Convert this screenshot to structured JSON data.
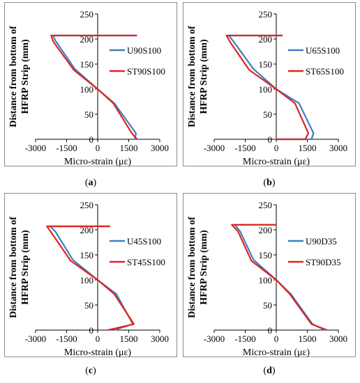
{
  "figure": {
    "captions": [
      "(a)",
      "(b)",
      "(c)",
      "(d)"
    ]
  },
  "colors": {
    "blue": "#3a7fc4",
    "red": "#e0231c",
    "axis": "#000000"
  },
  "chart_data": [
    {
      "type": "line",
      "panel_label": "(a)",
      "ylabel": "Distance from bottom of HFRP Strip (mm)",
      "xlabel": "Micro-strain (με)",
      "xlim": [
        -3000,
        3000
      ],
      "ylim": [
        0,
        250
      ],
      "xticks": [
        -3000,
        -1500,
        0,
        1500,
        3000
      ],
      "yticks": [
        0,
        50,
        100,
        150,
        200,
        250
      ],
      "legend_position": "right",
      "series": [
        {
          "name": "U90S100",
          "color": "#3a7fc4",
          "points": [
            [
              1800,
              0
            ],
            [
              1850,
              12
            ],
            [
              800,
              72
            ],
            [
              0,
              100
            ],
            [
              -1100,
              140
            ],
            [
              -2050,
              197
            ],
            [
              -2150,
              207
            ],
            [
              1800,
              207
            ]
          ]
        },
        {
          "name": "ST90S100",
          "color": "#e0231c",
          "points": [
            [
              1900,
              0
            ],
            [
              1650,
              12
            ],
            [
              750,
              72
            ],
            [
              0,
              100
            ],
            [
              -1150,
              138
            ],
            [
              -2150,
              195
            ],
            [
              -2250,
              207
            ],
            [
              1900,
              207
            ]
          ]
        }
      ]
    },
    {
      "type": "line",
      "panel_label": "(b)",
      "ylabel": "Distance from bottom of HFRP Strip (mm)",
      "xlabel": "Micro-strain (με)",
      "xlim": [
        -3000,
        3000
      ],
      "ylim": [
        0,
        250
      ],
      "xticks": [
        -3000,
        -1500,
        0,
        1500,
        3000
      ],
      "yticks": [
        0,
        50,
        100,
        150,
        200,
        250
      ],
      "legend_position": "right",
      "series": [
        {
          "name": "U65S100",
          "color": "#3a7fc4",
          "points": [
            [
              0,
              0
            ],
            [
              1700,
              0
            ],
            [
              1800,
              12
            ],
            [
              1100,
              72
            ],
            [
              0,
              100
            ],
            [
              -1100,
              140
            ],
            [
              -2100,
              197
            ],
            [
              -2300,
              207
            ],
            [
              300,
              207
            ]
          ]
        },
        {
          "name": "ST65S100",
          "color": "#e0231c",
          "points": [
            [
              0,
              0
            ],
            [
              1400,
              0
            ],
            [
              1550,
              12
            ],
            [
              900,
              72
            ],
            [
              0,
              100
            ],
            [
              -1300,
              138
            ],
            [
              -2250,
              195
            ],
            [
              -2400,
              207
            ],
            [
              300,
              207
            ]
          ]
        }
      ]
    },
    {
      "type": "line",
      "panel_label": "(c)",
      "ylabel": "Distance from bottom of HFRP Strip (mm)",
      "xlabel": "Micro-strain (με)",
      "xlim": [
        -3000,
        3000
      ],
      "ylim": [
        0,
        250
      ],
      "xticks": [
        -3000,
        -1500,
        0,
        1500,
        3000
      ],
      "yticks": [
        0,
        50,
        100,
        150,
        200,
        250
      ],
      "legend_position": "right",
      "series": [
        {
          "name": "U45S100",
          "color": "#3a7fc4",
          "points": [
            [
              800,
              0
            ],
            [
              1700,
              12
            ],
            [
              900,
              72
            ],
            [
              0,
              100
            ],
            [
              -1200,
              140
            ],
            [
              -2050,
              197
            ],
            [
              -2300,
              207
            ],
            [
              600,
              207
            ]
          ]
        },
        {
          "name": "ST45S100",
          "color": "#e0231c",
          "points": [
            [
              500,
              0
            ],
            [
              1750,
              12
            ],
            [
              800,
              72
            ],
            [
              0,
              100
            ],
            [
              -1300,
              138
            ],
            [
              -2250,
              195
            ],
            [
              -2450,
              207
            ],
            [
              600,
              207
            ]
          ]
        }
      ]
    },
    {
      "type": "line",
      "panel_label": "(d)",
      "ylabel": "Distance from bottom of HFRP Strip (mm)",
      "xlabel": "Micro-strain (με)",
      "xlim": [
        -3000,
        3000
      ],
      "ylim": [
        0,
        250
      ],
      "xticks": [
        -3000,
        -1500,
        0,
        1500,
        3000
      ],
      "yticks": [
        0,
        50,
        100,
        150,
        200,
        250
      ],
      "legend_position": "right",
      "series": [
        {
          "name": "U90D35",
          "color": "#3a7fc4",
          "points": [
            [
              2350,
              0
            ],
            [
              1750,
              12
            ],
            [
              700,
              72
            ],
            [
              0,
              100
            ],
            [
              -1100,
              140
            ],
            [
              -1750,
              197
            ],
            [
              -2000,
              210
            ],
            [
              0,
              210
            ]
          ]
        },
        {
          "name": "ST90D35",
          "color": "#e0231c",
          "points": [
            [
              2450,
              0
            ],
            [
              1700,
              12
            ],
            [
              650,
              72
            ],
            [
              0,
              100
            ],
            [
              -1200,
              138
            ],
            [
              -1850,
              197
            ],
            [
              -2150,
              210
            ],
            [
              0,
              210
            ]
          ]
        }
      ]
    }
  ]
}
